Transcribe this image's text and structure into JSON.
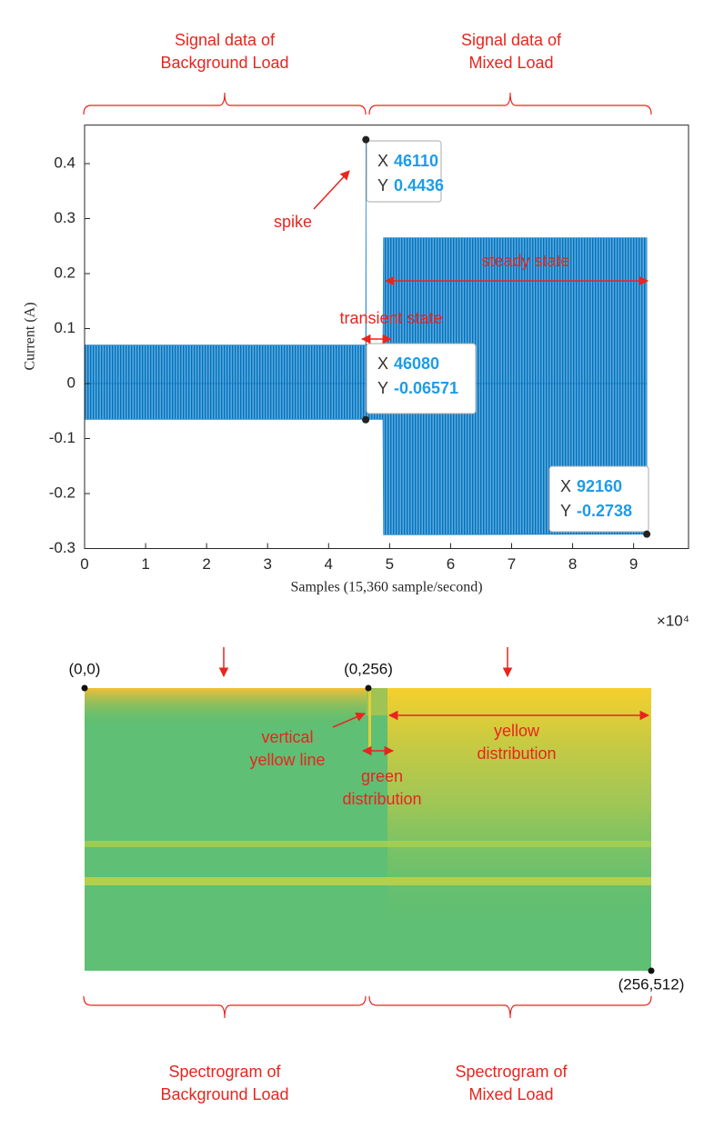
{
  "chart_data": {
    "type": "line",
    "xlabel": "Samples (15,360 sample/second)",
    "ylabel": "Current (A)",
    "x_multiplier": "×10⁴",
    "x": [
      0,
      46000,
      46080,
      46110,
      46150,
      48900,
      49000,
      92160
    ],
    "series": [
      {
        "color": "#0072bd",
        "values": [
          0.07,
          0.07,
          0.07,
          0.4436,
          0.07,
          0.07,
          0.265,
          0.265
        ]
      },
      {
        "color": "#0072bd",
        "values": [
          -0.065,
          -0.065,
          -0.06571,
          -0.065,
          -0.065,
          -0.065,
          -0.275,
          -0.2738
        ]
      }
    ],
    "xlim": [
      0,
      99000
    ],
    "xticks": [
      0,
      {
        "value": 10000,
        "label": "1"
      },
      {
        "value": 20000,
        "label": "2"
      },
      {
        "value": 30000,
        "label": "3"
      },
      {
        "value": 40000,
        "label": "4"
      },
      {
        "value": 50000,
        "label": "5"
      },
      {
        "value": 60000,
        "label": "6"
      },
      {
        "value": 70000,
        "label": "7"
      },
      {
        "value": 80000,
        "label": "8"
      },
      {
        "value": 90000,
        "label": "9"
      }
    ],
    "ylim": [
      -0.3,
      0.47
    ],
    "yticks": [
      -0.3,
      -0.2,
      -0.1,
      0,
      0.1,
      0.2,
      0.3,
      0.4
    ],
    "tip_x_label": "X",
    "tip_y_label": "Y",
    "datatips": [
      {
        "x": 46110,
        "y": 0.4436
      },
      {
        "x": 46080,
        "y": -0.06571
      },
      {
        "x": 92160,
        "y": -0.2738
      }
    ],
    "annotations": {
      "spike": "spike",
      "transient": "transient state",
      "steady": "steady state"
    },
    "brackets": [
      [
        "Signal data of",
        "Background Load"
      ],
      [
        "Signal data of",
        "Mixed Load"
      ]
    ]
  },
  "spectrogram": {
    "corners": [
      "(0,0)",
      "(0,256)",
      "(256,512)"
    ],
    "annotations": {
      "vertical": [
        "vertical",
        "yellow line"
      ],
      "green": [
        "green",
        "distribution"
      ],
      "yellow": [
        "yellow",
        "distribution"
      ]
    },
    "brackets": [
      [
        "Spectrogram of",
        "Background Load"
      ],
      [
        "Spectrogram of",
        "Mixed Load"
      ]
    ]
  }
}
